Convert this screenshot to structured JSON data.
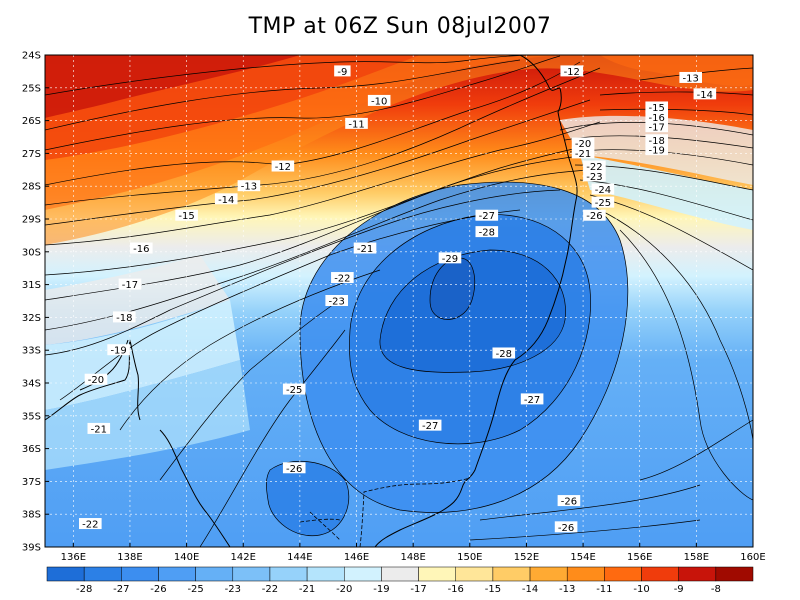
{
  "title": "TMP at 06Z Sun 08jul2007",
  "map": {
    "lon_range": [
      135,
      160
    ],
    "lat_range": [
      -39,
      -24
    ],
    "lat_ticks": [
      "24S",
      "25S",
      "26S",
      "27S",
      "28S",
      "29S",
      "30S",
      "31S",
      "32S",
      "33S",
      "34S",
      "35S",
      "36S",
      "37S",
      "38S",
      "39S"
    ],
    "lon_ticks": [
      "136E",
      "138E",
      "140E",
      "142E",
      "144E",
      "146E",
      "148E",
      "150E",
      "152E",
      "154E",
      "156E",
      "158E",
      "160E"
    ],
    "contour_labels": [
      {
        "text": "-9",
        "lon": 145.5,
        "lat": -24.5
      },
      {
        "text": "-10",
        "lon": 146.8,
        "lat": -25.4
      },
      {
        "text": "-11",
        "lon": 146.0,
        "lat": -26.1
      },
      {
        "text": "-12",
        "lon": 143.4,
        "lat": -27.4
      },
      {
        "text": "-13",
        "lon": 142.2,
        "lat": -28.0
      },
      {
        "text": "-14",
        "lon": 141.4,
        "lat": -28.4
      },
      {
        "text": "-15",
        "lon": 140.0,
        "lat": -28.9
      },
      {
        "text": "-16",
        "lon": 138.4,
        "lat": -29.9
      },
      {
        "text": "-17",
        "lon": 138.0,
        "lat": -31.0
      },
      {
        "text": "-18",
        "lon": 137.8,
        "lat": -32.0
      },
      {
        "text": "-19",
        "lon": 137.6,
        "lat": -33.0
      },
      {
        "text": "-20",
        "lon": 136.8,
        "lat": -33.9
      },
      {
        "text": "-21",
        "lon": 136.9,
        "lat": -35.4
      },
      {
        "text": "-22",
        "lon": 136.6,
        "lat": -38.3
      },
      {
        "text": "-21",
        "lon": 146.3,
        "lat": -29.9
      },
      {
        "text": "-22",
        "lon": 145.5,
        "lat": -30.8
      },
      {
        "text": "-23",
        "lon": 145.3,
        "lat": -31.5
      },
      {
        "text": "-25",
        "lon": 143.8,
        "lat": -34.2
      },
      {
        "text": "-26",
        "lon": 143.8,
        "lat": -36.6
      },
      {
        "text": "-27",
        "lon": 148.6,
        "lat": -35.3
      },
      {
        "text": "-28",
        "lon": 151.2,
        "lat": -33.1
      },
      {
        "text": "-29",
        "lon": 149.3,
        "lat": -30.2
      },
      {
        "text": "-27",
        "lon": 150.6,
        "lat": -28.9
      },
      {
        "text": "-28",
        "lon": 150.6,
        "lat": -29.4
      },
      {
        "text": "-27",
        "lon": 152.2,
        "lat": -34.5
      },
      {
        "text": "-26",
        "lon": 153.5,
        "lat": -37.6
      },
      {
        "text": "-26",
        "lon": 153.4,
        "lat": -38.4
      },
      {
        "text": "-12",
        "lon": 153.6,
        "lat": -24.5
      },
      {
        "text": "-13",
        "lon": 157.8,
        "lat": -24.7
      },
      {
        "text": "-14",
        "lon": 158.3,
        "lat": -25.2
      },
      {
        "text": "-15",
        "lon": 156.6,
        "lat": -25.6
      },
      {
        "text": "-16",
        "lon": 156.6,
        "lat": -25.9
      },
      {
        "text": "-17",
        "lon": 156.6,
        "lat": -26.2
      },
      {
        "text": "-18",
        "lon": 156.6,
        "lat": -26.6
      },
      {
        "text": "-19",
        "lon": 156.6,
        "lat": -26.9
      },
      {
        "text": "-20",
        "lon": 154.0,
        "lat": -26.7
      },
      {
        "text": "-21",
        "lon": 154.0,
        "lat": -27.0
      },
      {
        "text": "-22",
        "lon": 154.4,
        "lat": -27.4
      },
      {
        "text": "-23",
        "lon": 154.4,
        "lat": -27.7
      },
      {
        "text": "-24",
        "lon": 154.7,
        "lat": -28.1
      },
      {
        "text": "-25",
        "lon": 154.7,
        "lat": -28.5
      },
      {
        "text": "-26",
        "lon": 154.4,
        "lat": -28.9
      }
    ]
  },
  "colorbar": {
    "labels": [
      "-28",
      "-27",
      "-26",
      "-25",
      "-23",
      "-22",
      "-21",
      "-20",
      "-19",
      "-17",
      "-16",
      "-15",
      "-14",
      "-13",
      "-11",
      "-10",
      "-9",
      "-8"
    ],
    "colors": [
      "#1e6ed8",
      "#2c80e6",
      "#3c8ef0",
      "#4f9ef4",
      "#65b0f6",
      "#7cc0f8",
      "#96d2fa",
      "#b4e4fc",
      "#d2f2fe",
      "#ececec",
      "#fff6b8",
      "#ffe699",
      "#ffcc66",
      "#ffaa33",
      "#ff8c1a",
      "#ff6a10",
      "#f03c0c",
      "#c8140a",
      "#a00a00"
    ]
  }
}
